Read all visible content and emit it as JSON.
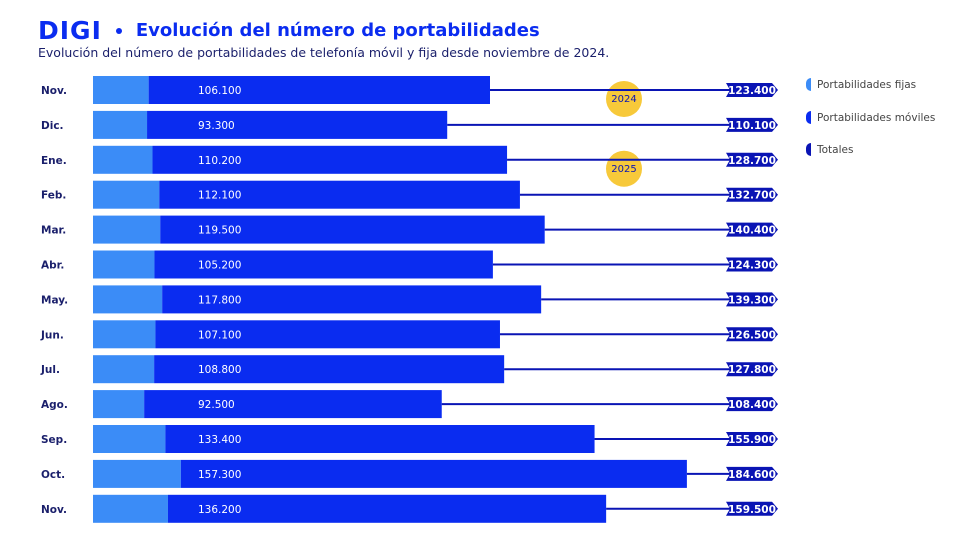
{
  "header": {
    "logo": "DIGI",
    "title": "Evolución del número de portabilidades",
    "subtitle": "Evolución del número de portabilidades de telefonía móvil y fija desde noviembre de 2024."
  },
  "chart_data": {
    "type": "bar",
    "orientation": "horizontal-stacked",
    "categories": [
      "Nov.",
      "Dic.",
      "Ene.",
      "Feb.",
      "Mar.",
      "Abr.",
      "May.",
      "Jun.",
      "Jul.",
      "Ago.",
      "Sep.",
      "Oct.",
      "Nov."
    ],
    "series": [
      {
        "name": "Portabilidades móviles",
        "values": [
          106100,
          93300,
          110200,
          112100,
          119500,
          105200,
          117800,
          107100,
          108800,
          92500,
          133400,
          157300,
          136200
        ],
        "labels": [
          "106.100",
          "93.300",
          "110.200",
          "112.100",
          "119.500",
          "105.200",
          "117.800",
          "107.100",
          "108.800",
          "92.500",
          "133.400",
          "157.300",
          "136.200"
        ]
      },
      {
        "name": "Totales",
        "values": [
          123400,
          110100,
          128700,
          132700,
          140400,
          124300,
          139300,
          126500,
          127800,
          108400,
          155900,
          184600,
          159500
        ],
        "labels": [
          "123.400",
          "110.100",
          "128.700",
          "132.700",
          "140.400",
          "124.300",
          "139.300",
          "126.500",
          "127.800",
          "108.400",
          "155.900",
          "184.600",
          "159.500"
        ]
      }
    ],
    "year_markers": [
      {
        "label": "2024",
        "row": 0
      },
      {
        "label": "2025",
        "row": 2
      }
    ],
    "legend": [
      {
        "name": "Portabilidades fijas",
        "color": "#3b8cf7"
      },
      {
        "name": "Portabilidades móviles",
        "color": "#0a2cf0"
      },
      {
        "name": "Totales",
        "color": "#0a14b4"
      }
    ],
    "legend_position": "right",
    "colors": {
      "fixed": "#3b8cf7",
      "mobile": "#0a2cf0",
      "total": "#0a14b4",
      "year": "#f7c93a"
    }
  }
}
